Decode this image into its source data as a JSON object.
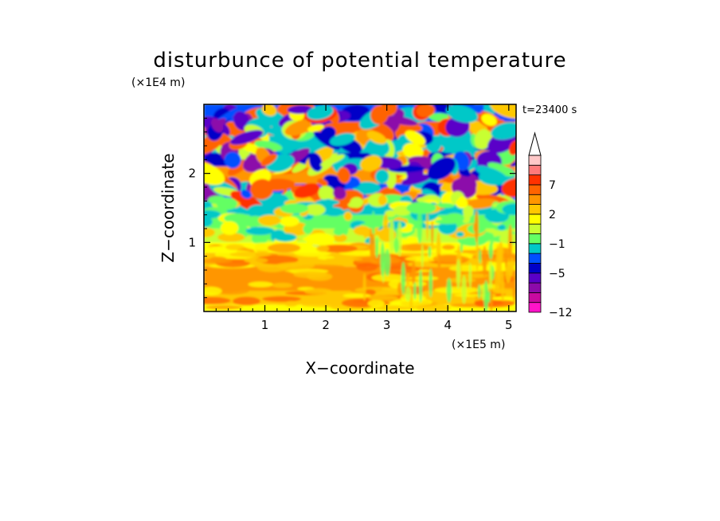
{
  "chart_data": {
    "type": "heatmap",
    "title": "disturbunce of potential temperature",
    "time_label": "t=23400 s",
    "xlabel": "X−coordinate",
    "ylabel": "Z−coordinate",
    "x_unit": "(×1E5 m)",
    "y_unit": "(×1E4 m)",
    "x_range": [
      0.0,
      5.12
    ],
    "y_range": [
      0.0,
      3.0
    ],
    "x_ticks": [
      1,
      2,
      3,
      4,
      5
    ],
    "x_tick_labels": [
      "1",
      "2",
      "3",
      "4",
      "5"
    ],
    "y_ticks": [
      1,
      2
    ],
    "y_tick_labels": [
      "1",
      "2"
    ],
    "colorbar": {
      "levels": [
        -12,
        -11,
        -9,
        -7,
        -5,
        -4,
        -3,
        -1,
        0,
        1,
        2,
        3,
        5,
        7,
        8,
        10,
        12
      ],
      "labeled_levels": [
        -12,
        -5,
        -1,
        2,
        7
      ],
      "labels": [
        "−12",
        "−5",
        "−1",
        "2",
        "7"
      ],
      "colors": [
        "#ff14c8",
        "#c80aa0",
        "#8c0aaa",
        "#5a00c8",
        "#0000c8",
        "#0050ff",
        "#00c8c8",
        "#64ff64",
        "#c8ff32",
        "#ffff00",
        "#ffc800",
        "#ff9600",
        "#ff6400",
        "#ff3200",
        "#ff7a7a",
        "#ffc8c8"
      ],
      "extend": "max"
    },
    "series": [
      {
        "x": [
          0.0,
          5.12
        ],
        "z_band": [
          0.0,
          0.3
        ],
        "value": 1.5
      },
      {
        "x": [
          0.0,
          5.12
        ],
        "z_band": [
          0.3,
          1.0
        ],
        "value": 2.5
      },
      {
        "x": [
          0.0,
          5.12
        ],
        "z_band": [
          1.0,
          1.5
        ],
        "value": 0.5
      },
      {
        "x": [
          0.0,
          5.12
        ],
        "z_band": [
          1.5,
          3.0
        ],
        "value": -2.0
      }
    ]
  }
}
